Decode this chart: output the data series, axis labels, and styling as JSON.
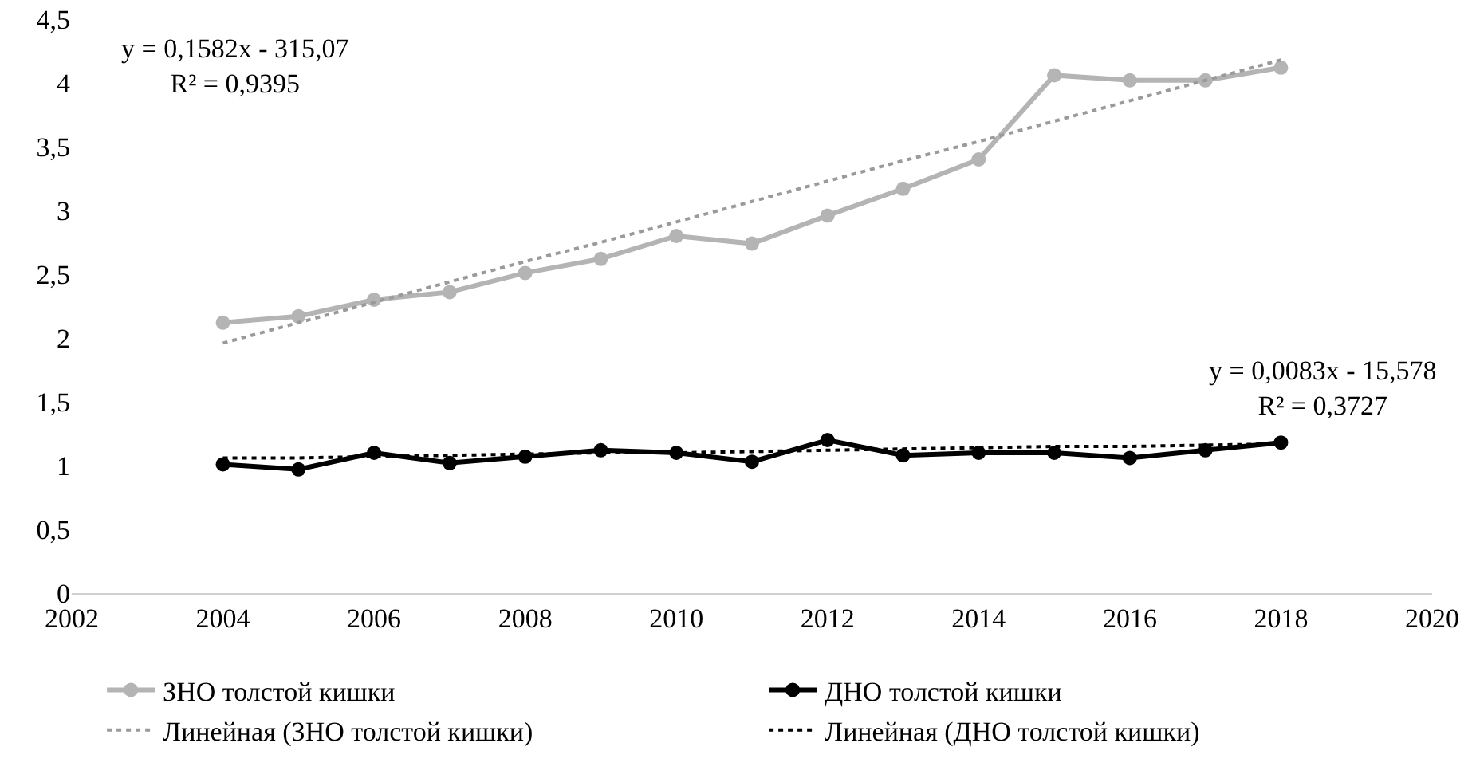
{
  "chart_data": {
    "type": "line",
    "x": [
      2004,
      2005,
      2006,
      2007,
      2008,
      2009,
      2010,
      2011,
      2012,
      2013,
      2014,
      2015,
      2016,
      2017,
      2018
    ],
    "series": [
      {
        "name": "ЗНО толстой кишки",
        "color": "#b4b4b4",
        "values": [
          2.12,
          2.17,
          2.3,
          2.36,
          2.51,
          2.62,
          2.8,
          2.74,
          2.96,
          3.17,
          3.4,
          4.06,
          4.02,
          4.02,
          4.12
        ]
      },
      {
        "name": "ДНО толстой кишки",
        "color": "#000000",
        "values": [
          1.01,
          0.97,
          1.1,
          1.02,
          1.07,
          1.12,
          1.1,
          1.03,
          1.2,
          1.08,
          1.1,
          1.1,
          1.06,
          1.12,
          1.18
        ]
      },
      {
        "name": "Линейная (ЗНО толстой кишки)",
        "type": "line",
        "color": "#9a9a9a",
        "values": [
          1.96,
          2.12,
          2.28,
          2.44,
          2.6,
          2.75,
          2.91,
          3.07,
          3.23,
          3.39,
          3.54,
          3.7,
          3.86,
          4.02,
          4.18
        ],
        "marker": "none",
        "line_style": "dotted"
      },
      {
        "name": "Линейная (ДНО толстой кишки)",
        "type": "line",
        "color": "#000000",
        "values": [
          1.06,
          1.06,
          1.07,
          1.08,
          1.09,
          1.1,
          1.1,
          1.11,
          1.12,
          1.13,
          1.14,
          1.15,
          1.15,
          1.16,
          1.17
        ],
        "marker": "none",
        "line_style": "dotted"
      }
    ],
    "xlim": [
      2002,
      2020
    ],
    "xticks": [
      2002,
      2004,
      2006,
      2008,
      2010,
      2012,
      2014,
      2016,
      2018,
      2020
    ],
    "ylim": [
      0,
      4.5
    ],
    "yticks": [
      0,
      {
        "value": 0.5,
        "label": "0,5"
      },
      1,
      {
        "value": 1.5,
        "label": "1,5"
      },
      2,
      {
        "value": 2.5,
        "label": "2,5"
      },
      3,
      {
        "value": 3.5,
        "label": "3,5"
      },
      4,
      {
        "value": 4.5,
        "label": "4,5"
      }
    ],
    "annotations": [
      "y = 0,1582x - 315,07\nR² = 0,9395",
      "y = 0,0083x - 15,578\nR² = 0,3727"
    ],
    "marker": "circle",
    "line_style": "solid",
    "grid": false,
    "legend": "bottom"
  }
}
